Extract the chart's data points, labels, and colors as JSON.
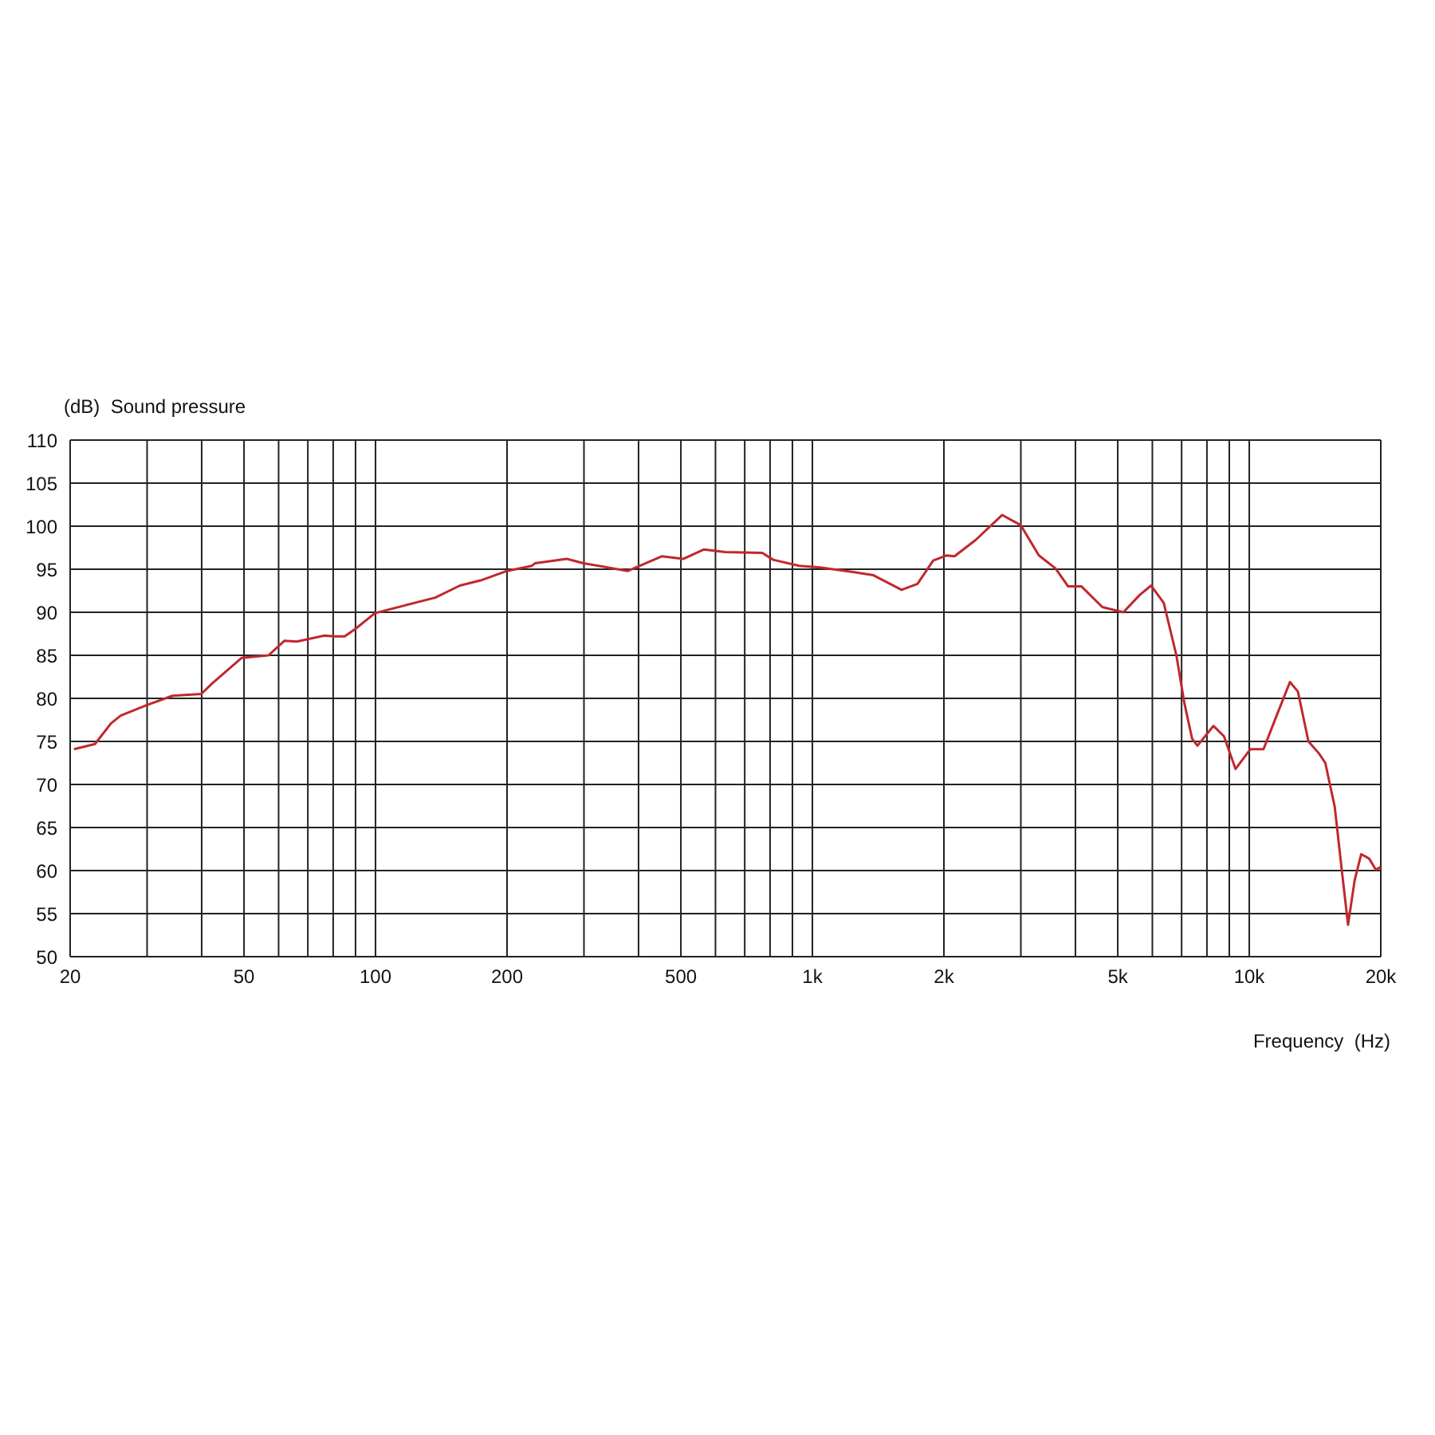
{
  "chart_data": {
    "type": "line",
    "ylabel": "(dB)  Sound pressure",
    "xlabel": "Frequency  (Hz)",
    "log": "x",
    "grid": true,
    "legend": false,
    "marker": "none",
    "line_style": "solid",
    "xlim": [
      20,
      20000
    ],
    "ylim": [
      50,
      110
    ],
    "xticks": [
      20,
      {
        "value": 30,
        "label": null
      },
      {
        "value": 40,
        "label": null
      },
      50,
      {
        "value": 60,
        "label": null
      },
      {
        "value": 70,
        "label": null
      },
      {
        "value": 80,
        "label": null
      },
      {
        "value": 90,
        "label": null
      },
      100,
      200,
      {
        "value": 300,
        "label": null
      },
      {
        "value": 400,
        "label": null
      },
      500,
      {
        "value": 600,
        "label": null
      },
      {
        "value": 700,
        "label": null
      },
      {
        "value": 800,
        "label": null
      },
      {
        "value": 900,
        "label": null
      },
      {
        "value": 1000,
        "label": "1k"
      },
      {
        "value": 2000,
        "label": "2k"
      },
      {
        "value": 3000,
        "label": null
      },
      {
        "value": 4000,
        "label": null
      },
      {
        "value": 5000,
        "label": "5k"
      },
      {
        "value": 6000,
        "label": null
      },
      {
        "value": 7000,
        "label": null
      },
      {
        "value": 8000,
        "label": null
      },
      {
        "value": 9000,
        "label": null
      },
      {
        "value": 10000,
        "label": "10k"
      },
      {
        "value": 20000,
        "label": "20k"
      }
    ],
    "yticks": [
      50,
      55,
      60,
      65,
      70,
      75,
      80,
      85,
      90,
      95,
      100,
      105,
      110
    ],
    "series": [
      {
        "color": "#c0282d",
        "x": [
          20.4,
          22.8,
          24.8,
          26.1,
          29.9,
          34.3,
          39.9,
          42.2,
          49.4,
          56.9,
          61.9,
          66,
          76.4,
          80.4,
          85,
          90.1,
          99.7,
          116.8,
          137,
          156,
          174,
          200,
          228,
          232,
          274,
          299,
          378,
          452,
          506,
          565,
          632,
          768,
          813,
          933,
          1040,
          1230,
          1380,
          1600,
          1740,
          1890,
          2030,
          2115,
          2365,
          2720,
          3000,
          3300,
          3600,
          3850,
          4130,
          4610,
          5150,
          5610,
          5960,
          6370,
          6810,
          7100,
          7400,
          7610,
          8280,
          8750,
          9300,
          10060,
          10780,
          11550,
          12390,
          12920,
          13660,
          14440,
          14930,
          15690,
          16280,
          16830,
          17430,
          18040,
          18800,
          19490,
          19980
        ],
        "values": [
          74.1,
          74.7,
          77.1,
          78,
          79.2,
          80.3,
          80.5,
          81.7,
          84.7,
          85,
          86.7,
          86.6,
          87.3,
          87.2,
          87.2,
          88.1,
          89.9,
          90.8,
          91.7,
          93.1,
          93.7,
          94.8,
          95.4,
          95.7,
          96.2,
          95.7,
          94.8,
          96.5,
          96.2,
          97.3,
          97,
          96.9,
          96.1,
          95.4,
          95.2,
          94.7,
          94.3,
          92.6,
          93.3,
          96,
          96.6,
          96.5,
          98.4,
          101.3,
          100.1,
          96.6,
          95.1,
          93,
          93,
          90.6,
          90,
          92,
          93.1,
          91.1,
          85,
          79.5,
          75.3,
          74.5,
          76.8,
          75.6,
          71.8,
          74.1,
          74.1,
          78,
          81.9,
          80.8,
          75,
          73.6,
          72.5,
          67.4,
          60.1,
          53.7,
          58.9,
          61.9,
          61.4,
          60.1,
          60.4
        ]
      }
    ]
  }
}
